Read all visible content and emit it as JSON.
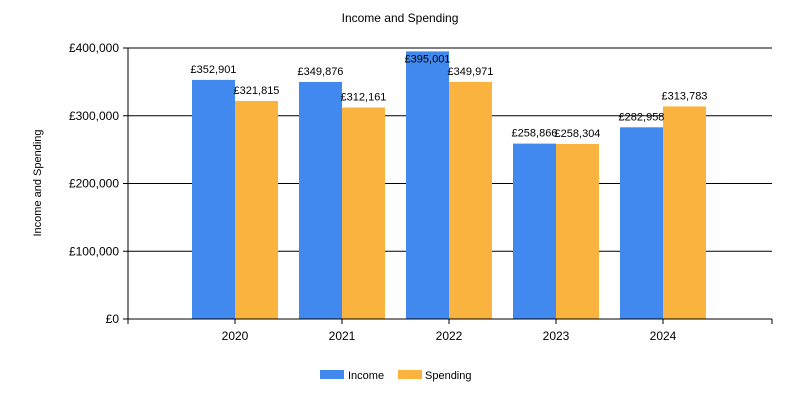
{
  "chart_data": {
    "type": "bar",
    "title": "Income and Spending",
    "xlabel": "",
    "ylabel": "Income and Spending",
    "categories": [
      "2020",
      "2021",
      "2022",
      "2023",
      "2024"
    ],
    "series": [
      {
        "name": "Income",
        "color": "#4189EE",
        "values": [
          352901,
          349876,
          395001,
          258866,
          282958
        ],
        "labels": [
          "£352,901",
          "£349,876",
          "£395,001",
          "£258,866",
          "£282,958"
        ]
      },
      {
        "name": "Spending",
        "color": "#FBB33F",
        "values": [
          321815,
          312161,
          349971,
          258304,
          313783
        ],
        "labels": [
          "£321,815",
          "£312,161",
          "£349,971",
          "£258,304",
          "£313,783"
        ]
      }
    ],
    "ylim": [
      0,
      400000
    ],
    "yticks": [
      0,
      100000,
      200000,
      300000,
      400000
    ],
    "ytick_labels": [
      "£0",
      "£100,000",
      "£200,000",
      "£300,000",
      "£400,000"
    ],
    "grid": true,
    "legend_position": "bottom-center"
  }
}
